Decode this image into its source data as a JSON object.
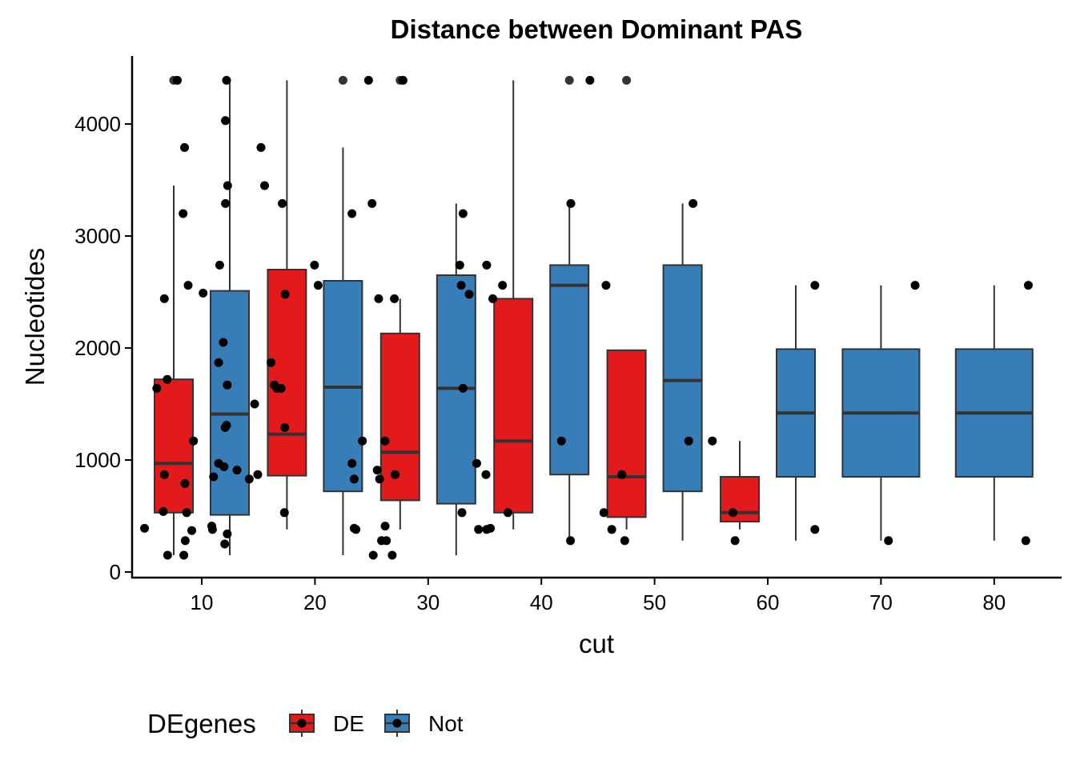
{
  "chart_data": {
    "type": "box",
    "title": "Distance between Dominant PAS",
    "xlabel": "cut",
    "ylabel": "Nucleotides",
    "categories": [
      "10",
      "20",
      "30",
      "40",
      "50",
      "60",
      "70",
      "80"
    ],
    "ylim": [
      -50,
      4500
    ],
    "yticks": [
      0,
      1000,
      2000,
      3000,
      4000
    ],
    "grid": false,
    "legend": {
      "title": "DEgenes",
      "position": "bottom-left"
    },
    "colors": {
      "DE": "#E31A1C",
      "Not": "#377EB8",
      "median": "#333333",
      "point": "#000000"
    },
    "series": [
      {
        "name": "DE",
        "boxes": [
          {
            "category": "10",
            "q1": 530,
            "median": 970,
            "q3": 1720,
            "whisker_low": 150,
            "whisker_high": 3450,
            "outliers": [
              4390
            ]
          },
          {
            "category": "20",
            "q1": 860,
            "median": 1230,
            "q3": 2700,
            "whisker_low": 380,
            "whisker_high": 4390,
            "outliers": []
          },
          {
            "category": "30",
            "q1": 640,
            "median": 1070,
            "q3": 2130,
            "whisker_low": 380,
            "whisker_high": 2440,
            "outliers": [
              4390
            ]
          },
          {
            "category": "40",
            "q1": 530,
            "median": 1170,
            "q3": 2440,
            "whisker_low": 380,
            "whisker_high": 4390,
            "outliers": []
          },
          {
            "category": "50",
            "q1": 490,
            "median": 850,
            "q3": 1980,
            "whisker_low": 380,
            "whisker_high": 1980,
            "outliers": [
              4390
            ]
          },
          {
            "category": "60",
            "q1": 450,
            "median": 530,
            "q3": 850,
            "whisker_low": 380,
            "whisker_high": 1170,
            "outliers": []
          }
        ],
        "points": [
          {
            "category": "10",
            "jitter": 0.1,
            "value": 4390
          },
          {
            "category": "10",
            "jitter": 0.3,
            "value": 3790
          },
          {
            "category": "10",
            "jitter": 0.26,
            "value": 3200
          },
          {
            "category": "10",
            "jitter": 0.4,
            "value": 2560
          },
          {
            "category": "10",
            "jitter": -0.26,
            "value": 2440
          },
          {
            "category": "10",
            "jitter": -0.18,
            "value": 1720
          },
          {
            "category": "10",
            "jitter": -0.47,
            "value": 1640
          },
          {
            "category": "10",
            "jitter": 0.55,
            "value": 1170
          },
          {
            "category": "10",
            "jitter": -0.26,
            "value": 870
          },
          {
            "category": "10",
            "jitter": 0.31,
            "value": 790
          },
          {
            "category": "10",
            "jitter": -0.29,
            "value": 540
          },
          {
            "category": "10",
            "jitter": 0.36,
            "value": 530
          },
          {
            "category": "10",
            "jitter": -0.81,
            "value": 390
          },
          {
            "category": "10",
            "jitter": 0.5,
            "value": 370
          },
          {
            "category": "10",
            "jitter": 0.32,
            "value": 280
          },
          {
            "category": "10",
            "jitter": -0.17,
            "value": 150
          },
          {
            "category": "10",
            "jitter": 0.28,
            "value": 150
          },
          {
            "category": "20",
            "jitter": -0.72,
            "value": 3790
          },
          {
            "category": "20",
            "jitter": -0.62,
            "value": 3450
          },
          {
            "category": "20",
            "jitter": -0.13,
            "value": 3290
          },
          {
            "category": "20",
            "jitter": -0.05,
            "value": 2480
          },
          {
            "category": "20",
            "jitter": -0.44,
            "value": 1870
          },
          {
            "category": "20",
            "jitter": -0.35,
            "value": 1670
          },
          {
            "category": "20",
            "jitter": -0.28,
            "value": 1640
          },
          {
            "category": "20",
            "jitter": -0.16,
            "value": 1640
          },
          {
            "category": "20",
            "jitter": -0.06,
            "value": 1290
          },
          {
            "category": "20",
            "jitter": -0.81,
            "value": 870
          },
          {
            "category": "20",
            "jitter": -0.07,
            "value": 530
          },
          {
            "category": "30",
            "jitter": 0.08,
            "value": 4390
          },
          {
            "category": "30",
            "jitter": -0.78,
            "value": 3290
          },
          {
            "category": "30",
            "jitter": -0.16,
            "value": 2440
          },
          {
            "category": "30",
            "jitter": -0.42,
            "value": 1170
          },
          {
            "category": "30",
            "jitter": -0.57,
            "value": 830
          },
          {
            "category": "30",
            "jitter": -0.14,
            "value": 870
          },
          {
            "category": "30",
            "jitter": -0.38,
            "value": 280
          },
          {
            "category": "30",
            "jitter": -0.22,
            "value": 150
          },
          {
            "category": "40",
            "jitter": -0.74,
            "value": 2740
          },
          {
            "category": "40",
            "jitter": -0.57,
            "value": 2440
          },
          {
            "category": "40",
            "jitter": -0.3,
            "value": 2560
          },
          {
            "category": "40",
            "jitter": -0.15,
            "value": 530
          },
          {
            "category": "40",
            "jitter": -0.76,
            "value": 870
          },
          {
            "category": "40",
            "jitter": -0.74,
            "value": 380
          },
          {
            "category": "50",
            "jitter": -0.57,
            "value": 2560
          },
          {
            "category": "50",
            "jitter": -0.63,
            "value": 530
          },
          {
            "category": "50",
            "jitter": -0.41,
            "value": 380
          },
          {
            "category": "50",
            "jitter": -0.13,
            "value": 870
          },
          {
            "category": "50",
            "jitter": -0.05,
            "value": 280
          },
          {
            "category": "60",
            "jitter": -0.76,
            "value": 1170
          },
          {
            "category": "60",
            "jitter": -0.19,
            "value": 530
          },
          {
            "category": "60",
            "jitter": -0.13,
            "value": 280
          }
        ]
      },
      {
        "name": "Not",
        "boxes": [
          {
            "category": "10",
            "q1": 510,
            "median": 1410,
            "q3": 2510,
            "whisker_low": 150,
            "whisker_high": 4390,
            "outliers": []
          },
          {
            "category": "20",
            "q1": 720,
            "median": 1650,
            "q3": 2600,
            "whisker_low": 150,
            "whisker_high": 3790,
            "outliers": [
              4390
            ]
          },
          {
            "category": "30",
            "q1": 610,
            "median": 1640,
            "q3": 2650,
            "whisker_low": 150,
            "whisker_high": 3290,
            "outliers": []
          },
          {
            "category": "40",
            "q1": 870,
            "median": 2560,
            "q3": 2740,
            "whisker_low": 280,
            "whisker_high": 3290,
            "outliers": [
              4390
            ]
          },
          {
            "category": "50",
            "q1": 720,
            "median": 1710,
            "q3": 2740,
            "whisker_low": 280,
            "whisker_high": 3290,
            "outliers": []
          },
          {
            "category": "60",
            "q1": 850,
            "median": 1420,
            "q3": 1990,
            "whisker_low": 280,
            "whisker_high": 2560,
            "outliers": []
          },
          {
            "category": "70",
            "q1": 850,
            "median": 1420,
            "q3": 1990,
            "whisker_low": 280,
            "whisker_high": 2560,
            "outliers": []
          },
          {
            "category": "80",
            "q1": 850,
            "median": 1420,
            "q3": 1990,
            "whisker_low": 280,
            "whisker_high": 2560,
            "outliers": []
          }
        ],
        "points": [
          {
            "category": "10",
            "jitter": -0.09,
            "value": 4390
          },
          {
            "category": "10",
            "jitter": -0.12,
            "value": 4030
          },
          {
            "category": "10",
            "jitter": -0.06,
            "value": 3450
          },
          {
            "category": "10",
            "jitter": -0.12,
            "value": 3290
          },
          {
            "category": "10",
            "jitter": -0.28,
            "value": 2740
          },
          {
            "category": "10",
            "jitter": -0.74,
            "value": 2490
          },
          {
            "category": "10",
            "jitter": -0.18,
            "value": 2050
          },
          {
            "category": "10",
            "jitter": -0.31,
            "value": 1870
          },
          {
            "category": "10",
            "jitter": -0.07,
            "value": 1670
          },
          {
            "category": "10",
            "jitter": 0.69,
            "value": 1500
          },
          {
            "category": "10",
            "jitter": -0.09,
            "value": 1310
          },
          {
            "category": "10",
            "jitter": -0.13,
            "value": 1290
          },
          {
            "category": "10",
            "jitter": -0.31,
            "value": 970
          },
          {
            "category": "10",
            "jitter": -0.16,
            "value": 940
          },
          {
            "category": "10",
            "jitter": 0.2,
            "value": 910
          },
          {
            "category": "10",
            "jitter": -0.45,
            "value": 850
          },
          {
            "category": "10",
            "jitter": 0.54,
            "value": 830
          },
          {
            "category": "10",
            "jitter": -0.5,
            "value": 410
          },
          {
            "category": "10",
            "jitter": -0.48,
            "value": 380
          },
          {
            "category": "10",
            "jitter": -0.07,
            "value": 340
          },
          {
            "category": "10",
            "jitter": -0.14,
            "value": 250
          },
          {
            "category": "20",
            "jitter": -0.79,
            "value": 2740
          },
          {
            "category": "20",
            "jitter": -0.69,
            "value": 2560
          },
          {
            "category": "20",
            "jitter": 0.71,
            "value": 4390
          },
          {
            "category": "20",
            "jitter": 0.25,
            "value": 3200
          },
          {
            "category": "20",
            "jitter": 0.99,
            "value": 2440
          },
          {
            "category": "20",
            "jitter": 0.54,
            "value": 1170
          },
          {
            "category": "20",
            "jitter": 0.25,
            "value": 970
          },
          {
            "category": "20",
            "jitter": 0.95,
            "value": 910
          },
          {
            "category": "20",
            "jitter": 0.31,
            "value": 830
          },
          {
            "category": "20",
            "jitter": 1.17,
            "value": 410
          },
          {
            "category": "20",
            "jitter": 0.31,
            "value": 390
          },
          {
            "category": "20",
            "jitter": 0.36,
            "value": 380
          },
          {
            "category": "20",
            "jitter": 1.07,
            "value": 280
          },
          {
            "category": "20",
            "jitter": 0.84,
            "value": 150
          },
          {
            "category": "30",
            "jitter": 0.19,
            "value": 3200
          },
          {
            "category": "30",
            "jitter": 0.1,
            "value": 2740
          },
          {
            "category": "30",
            "jitter": 0.14,
            "value": 2560
          },
          {
            "category": "30",
            "jitter": 0.36,
            "value": 2480
          },
          {
            "category": "30",
            "jitter": 0.19,
            "value": 1640
          },
          {
            "category": "30",
            "jitter": 0.57,
            "value": 970
          },
          {
            "category": "30",
            "jitter": 0.16,
            "value": 530
          },
          {
            "category": "30",
            "jitter": 0.62,
            "value": 380
          },
          {
            "category": "30",
            "jitter": 0.95,
            "value": 390
          },
          {
            "category": "40",
            "jitter": 0.04,
            "value": 3290
          },
          {
            "category": "40",
            "jitter": -0.22,
            "value": 1170
          },
          {
            "category": "40",
            "jitter": 0.03,
            "value": 280
          },
          {
            "category": "40",
            "jitter": 0.57,
            "value": 4390
          },
          {
            "category": "50",
            "jitter": 0.17,
            "value": 1170
          },
          {
            "category": "50",
            "jitter": 0.29,
            "value": 3290
          },
          {
            "category": "60",
            "jitter": 0.53,
            "value": 2560
          },
          {
            "category": "60",
            "jitter": 0.53,
            "value": 380
          },
          {
            "category": "70",
            "jitter": -0.57,
            "value": 280
          },
          {
            "category": "70",
            "jitter": 0.17,
            "value": 2560
          },
          {
            "category": "80",
            "jitter": 0.1,
            "value": 280
          },
          {
            "category": "80",
            "jitter": 0.17,
            "value": 2560
          }
        ]
      }
    ]
  }
}
